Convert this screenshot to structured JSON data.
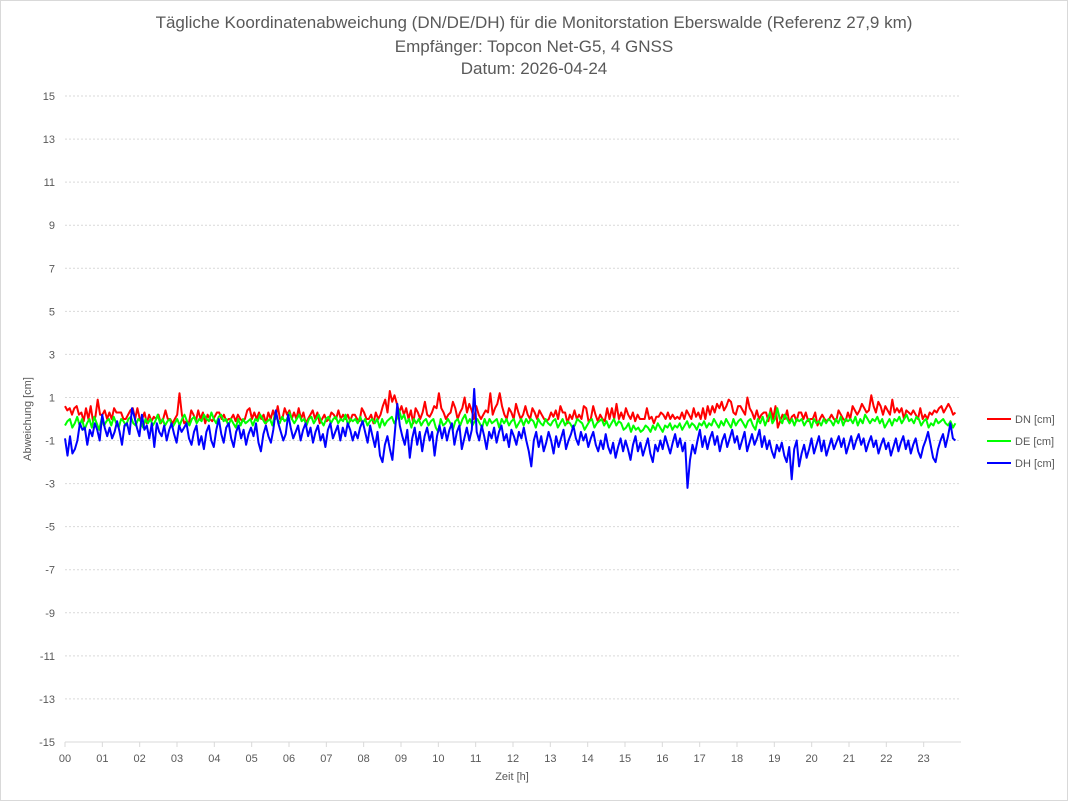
{
  "chart_data": {
    "type": "line",
    "title": "Tägliche Koordinatenabweichung (DN/DE/DH) für die Monitorstation Eberswalde (Referenz 27,9 km)",
    "subtitle": "Empfänger: Topcon Net-G5, 4 GNSS",
    "subtitle2": "Datum: 2026-04-24",
    "xlabel": "Zeit [h]",
    "ylabel": "Abweichung [cm]",
    "xlim": [
      0,
      24
    ],
    "ylim": [
      -15,
      15
    ],
    "yticks": [
      "15",
      "13",
      "11",
      "9",
      "7",
      "5",
      "3",
      "1",
      "-1",
      "-3",
      "-5",
      "-7",
      "-9",
      "-11",
      "-13",
      "-15"
    ],
    "xticks": [
      "00",
      "01",
      "02",
      "03",
      "04",
      "05",
      "06",
      "07",
      "08",
      "09",
      "10",
      "11",
      "12",
      "13",
      "14",
      "15",
      "16",
      "17",
      "18",
      "19",
      "20",
      "21",
      "22",
      "23"
    ],
    "grid": true,
    "legend_position": "right",
    "series": [
      {
        "name": "DN [cm]",
        "color": "#ff0000",
        "values": [
          0.6,
          0.4,
          0.5,
          0.2,
          0.5,
          0.6,
          0.2,
          0.3,
          -0.1,
          0.5,
          0.0,
          0.6,
          -0.1,
          0.1,
          0.9,
          0.2,
          0.2,
          0.4,
          0.0,
          0.3,
          0.0,
          0.5,
          0.3,
          0.3,
          0.3,
          0.0,
          0.0,
          0.2,
          0.4,
          0.5,
          0.0,
          0.5,
          0.0,
          0.0,
          0.3,
          -0.2,
          0.2,
          -0.1,
          0.1,
          0.0,
          0.2,
          -0.2,
          0.0,
          0.4,
          0.0,
          0.0,
          -0.2,
          0.0,
          0.2,
          1.2,
          0.2,
          -0.2,
          -0.1,
          -0.2,
          0.4,
          0.2,
          -0.1,
          0.4,
          0.0,
          0.3,
          -0.2,
          0.2,
          0.0,
          -0.1,
          0.1,
          0.3,
          0.3,
          0.0,
          0.2,
          -0.1,
          0.0,
          0.0,
          0.2,
          -0.1,
          0.2,
          0.0,
          -0.1,
          0.0,
          0.4,
          0.5,
          0.0,
          0.3,
          0.0,
          0.3,
          0.0,
          0.2,
          -0.2,
          0.3,
          0.0,
          0.4,
          0.0,
          0.6,
          0.0,
          0.0,
          0.5,
          0.2,
          0.4,
          0.0,
          0.3,
          0.0,
          0.5,
          0.0,
          0.3,
          -0.2,
          0.0,
          0.2,
          0.4,
          0.0,
          0.3,
          -0.2,
          0.0,
          0.2,
          -0.1,
          0.0,
          0.3,
          0.2,
          0.0,
          0.4,
          0.0,
          0.2,
          0.0,
          0.2,
          -0.1,
          0.2,
          0.2,
          0.0,
          -0.1,
          0.5,
          0.3,
          0.0,
          0.0,
          0.2,
          -0.2,
          0.3,
          0.0,
          0.2,
          0.6,
          0.9,
          0.3,
          1.3,
          0.8,
          1.1,
          0.7,
          0.3,
          0.6,
          0.2,
          0.5,
          0.0,
          0.4,
          -0.2,
          0.5,
          0.3,
          0.0,
          0.3,
          0.8,
          0.2,
          0.1,
          0.3,
          0.6,
          0.5,
          1.2,
          0.5,
          0.3,
          0.0,
          0.2,
          0.3,
          0.8,
          0.5,
          0.0,
          0.3,
          0.5,
          1.0,
          0.3,
          0.7,
          0.4,
          0.0,
          0.6,
          0.2,
          0.0,
          0.2,
          0.4,
          0.3,
          1.2,
          0.2,
          0.5,
          0.7,
          1.2,
          0.6,
          0.2,
          0.0,
          0.5,
          0.3,
          0.0,
          0.7,
          0.3,
          0.0,
          0.2,
          0.6,
          0.2,
          0.0,
          0.5,
          0.3,
          0.0,
          0.4,
          0.2,
          0.0,
          -0.1,
          0.0,
          0.3,
          0.1,
          0.4,
          0.0,
          0.6,
          0.3,
          0.3,
          -0.2,
          0.2,
          0.0,
          0.4,
          0.0,
          0.2,
          0.0,
          0.6,
          0.5,
          -0.1,
          0.0,
          0.6,
          0.2,
          -0.1,
          0.2,
          0.0,
          -0.1,
          0.5,
          0.0,
          0.5,
          0.0,
          0.7,
          0.0,
          0.3,
          0.0,
          0.5,
          0.2,
          0.0,
          0.3,
          -0.1,
          0.2,
          0.0,
          0.0,
          0.0,
          0.5,
          0.0,
          0.1,
          -0.2,
          0.1,
          0.1,
          0.3,
          0.2,
          0.0,
          0.3,
          0.0,
          0.2,
          0.0,
          0.1,
          0.0,
          0.3,
          0.0,
          0.4,
          0.2,
          0.0,
          0.5,
          0.1,
          0.3,
          0.0,
          0.5,
          0.0,
          0.6,
          0.2,
          0.6,
          0.3,
          0.7,
          0.5,
          0.8,
          0.4,
          0.6,
          0.9,
          0.8,
          0.3,
          0.2,
          0.6,
          0.6,
          0.4,
          0.2,
          1.0,
          0.5,
          0.3,
          0.0,
          0.4,
          0.0,
          0.2,
          0.3,
          0.3,
          -0.1,
          0.5,
          0.0,
          0.6,
          -0.4,
          -0.1,
          0.2,
          0.0,
          0.4,
          -0.2,
          0.1,
          0.2,
          -0.1,
          0.3,
          0.3,
          0.0,
          0.3,
          -0.1,
          0.0,
          0.0,
          0.3,
          -0.3,
          0.0,
          0.2,
          0.0,
          -0.1,
          0.0,
          0.2,
          0.0,
          -0.1,
          0.4,
          0.2,
          0.0,
          -0.1,
          0.3,
          0.0,
          0.6,
          0.4,
          0.2,
          0.4,
          0.7,
          0.5,
          0.3,
          0.4,
          1.1,
          0.6,
          0.3,
          0.8,
          0.6,
          0.2,
          0.6,
          0.4,
          0.2,
          0.9,
          0.3,
          0.5,
          0.3,
          0.5,
          0.0,
          0.4,
          0.3,
          0.2,
          0.4,
          0.2,
          0.0,
          0.5,
          0.0,
          0.2,
          0.0,
          0.3,
          0.2,
          0.4,
          0.3,
          0.5,
          0.6,
          0.3,
          0.5,
          0.7,
          0.5,
          0.2,
          0.3
        ]
      },
      {
        "name": "DE [cm]",
        "color": "#00ff00",
        "values": [
          -0.3,
          -0.1,
          0.0,
          -0.4,
          -0.2,
          0.1,
          -0.3,
          0.0,
          -0.5,
          -0.2,
          0.0,
          -0.4,
          0.1,
          -0.2,
          -0.5,
          0.0,
          -0.3,
          -0.1,
          0.0,
          -0.3,
          0.1,
          -0.2,
          -0.4,
          0.0,
          -0.1,
          -0.3,
          0.0,
          0.1,
          -0.2,
          -0.3,
          0.0,
          -0.1,
          -0.4,
          0.0,
          -0.2,
          0.0,
          -0.3,
          -0.1,
          0.2,
          -0.2,
          0.0,
          -0.3,
          -0.1,
          0.0,
          -0.4,
          -0.2,
          0.0,
          -0.3,
          0.0,
          0.2,
          -0.1,
          -0.3,
          0.0,
          0.1,
          -0.2,
          0.0,
          -0.1,
          0.2,
          0.0,
          -0.1,
          0.3,
          0.0,
          -0.2,
          0.1,
          0.2,
          -0.1,
          0.0,
          -0.3,
          0.0,
          -0.2,
          -0.4,
          0.0,
          -0.3,
          0.0,
          -0.2,
          -0.1,
          0.0,
          -0.3,
          0.0,
          -0.1,
          0.2,
          0.0,
          -0.2,
          -0.1,
          0.0,
          -0.3,
          0.2,
          0.0,
          -0.2,
          0.1,
          -0.1,
          0.0,
          0.3,
          0.0,
          -0.2,
          0.0,
          0.2,
          -0.1,
          0.0,
          -0.3,
          0.0,
          0.1,
          -0.2,
          0.0,
          0.2,
          -0.1,
          -0.3,
          0.0,
          0.1,
          -0.2,
          0.0,
          0.1,
          -0.2,
          0.0,
          -0.1,
          0.2,
          -0.3,
          0.0,
          -0.1,
          0.0,
          -0.2,
          0.1,
          -0.2,
          0.0,
          -0.3,
          -0.1,
          0.0,
          -0.2,
          0.0,
          -0.4,
          0.0,
          -0.3,
          -0.1,
          0.0,
          0.1,
          -0.2,
          0.0,
          0.4,
          0.0,
          0.2,
          -0.2,
          0.0,
          -0.4,
          0.0,
          -0.2,
          0.0,
          -0.3,
          -0.1,
          0.0,
          -0.3,
          -0.1,
          0.0,
          -0.4,
          -0.6,
          0.0,
          -0.3,
          -0.2,
          0.0,
          -0.2,
          -0.5,
          -0.1,
          0.0,
          -0.3,
          0.0,
          0.2,
          -0.2,
          0.0,
          -0.3,
          -0.1,
          0.0,
          -0.2,
          -0.4,
          0.0,
          -0.3,
          0.0,
          -0.2,
          -0.1,
          0.0,
          -0.4,
          0.0,
          -0.2,
          0.0,
          -0.3,
          -0.1,
          0.0,
          -0.4,
          -0.2,
          0.0,
          -0.3,
          0.0,
          -0.2,
          0.0,
          -0.1,
          -0.4,
          0.0,
          -0.2,
          -0.3,
          0.0,
          -0.2,
          -0.3,
          -0.1,
          0.0,
          -0.4,
          -0.2,
          0.0,
          -0.3,
          -0.1,
          -0.2,
          -0.4,
          -0.3,
          0.0,
          -0.1,
          -0.2,
          -0.5,
          -0.3,
          -0.1,
          0.0,
          -0.4,
          -0.2,
          -0.1,
          0.0,
          -0.3,
          -0.1,
          -0.4,
          -0.2,
          0.0,
          -0.3,
          -0.1,
          -0.2,
          -0.5,
          -0.4,
          -0.2,
          -0.6,
          -0.3,
          -0.5,
          -0.4,
          -0.6,
          -0.5,
          -0.3,
          -0.4,
          -0.6,
          -0.3,
          -0.5,
          -0.2,
          -0.4,
          -0.6,
          -0.3,
          -0.4,
          -0.2,
          -0.5,
          -0.3,
          -0.4,
          -0.2,
          -0.5,
          -0.3,
          -0.1,
          -0.4,
          -0.2,
          -0.3,
          -0.5,
          -0.2,
          -0.3,
          -0.1,
          -0.4,
          -0.2,
          -0.3,
          0.0,
          -0.2,
          -0.4,
          -0.1,
          -0.3,
          0.0,
          -0.2,
          -0.4,
          0.0,
          -0.3,
          -0.1,
          0.0,
          -0.2,
          -0.4,
          -0.1,
          0.0,
          -0.3,
          -0.5,
          0.0,
          -0.2,
          0.1,
          -0.3,
          0.0,
          0.3,
          -0.2,
          0.0,
          0.5,
          0.0,
          -0.2,
          0.2,
          0.0,
          -0.2,
          0.0,
          -0.3,
          0.0,
          -0.1,
          0.0,
          -0.3,
          -0.1,
          0.0,
          -0.4,
          0.0,
          -0.2,
          -0.1,
          -0.3,
          0.0,
          -0.2,
          0.0,
          -0.1,
          -0.3,
          0.0,
          -0.2,
          0.1,
          -0.3,
          0.0,
          -0.1,
          0.0,
          -0.2,
          0.1,
          -0.3,
          0.0,
          -0.2,
          0.2,
          0.0,
          -0.2,
          0.0,
          -0.1,
          0.1,
          -0.2,
          0.0,
          -0.4,
          -0.2,
          0.0,
          -0.3,
          0.0,
          -0.1,
          0.1,
          -0.2,
          0.0,
          0.2,
          -0.1,
          0.0,
          -0.2,
          0.1,
          0.0,
          -0.3,
          -0.1,
          0.0,
          -0.4,
          -0.2,
          -0.3,
          0.0,
          -0.2,
          -0.1,
          0.0,
          -0.2,
          -0.3,
          -0.1,
          -0.4,
          -0.2
        ]
      },
      {
        "name": "DH [cm]",
        "color": "#0000ff",
        "values": [
          -0.9,
          -1.7,
          -0.8,
          -1.6,
          -1.4,
          -1.0,
          -0.2,
          -0.5,
          -0.4,
          -1.2,
          -0.5,
          -0.8,
          -0.2,
          -0.5,
          -1.0,
          0.2,
          -0.4,
          -0.8,
          -0.4,
          -0.9,
          -0.6,
          -0.1,
          -0.6,
          -1.2,
          -0.3,
          -0.2,
          -0.7,
          0.5,
          0.1,
          -0.4,
          -0.8,
          0.2,
          -0.5,
          -0.3,
          -0.9,
          -0.2,
          -1.3,
          -0.2,
          -0.6,
          -0.8,
          -0.3,
          -1.0,
          -0.5,
          -0.2,
          -0.7,
          -1.1,
          -0.3,
          -0.6,
          -0.4,
          -0.2,
          -0.9,
          -1.2,
          -0.6,
          -0.3,
          -1.2,
          -0.8,
          -1.4,
          -0.6,
          -0.3,
          -1.0,
          -1.3,
          -0.5,
          0.0,
          -0.7,
          -1.1,
          -0.4,
          -0.2,
          -0.9,
          -1.3,
          -0.6,
          -0.3,
          -0.9,
          -0.5,
          -1.2,
          -0.7,
          -0.4,
          -0.8,
          -0.2,
          -1.1,
          -1.5,
          -0.7,
          -0.3,
          -0.8,
          -1.1,
          -0.5,
          0.4,
          -0.2,
          -0.6,
          -1.0,
          -0.7,
          0.2,
          -0.4,
          -0.9,
          -0.6,
          -0.3,
          -1.0,
          -0.5,
          -0.2,
          -0.8,
          -0.4,
          -1.1,
          -0.6,
          -0.3,
          -1.0,
          -0.7,
          -1.3,
          -0.5,
          -0.2,
          -0.9,
          -0.6,
          -0.3,
          -1.0,
          -0.4,
          -0.8,
          -0.2,
          -0.5,
          -1.0,
          -0.6,
          -0.9,
          -0.4,
          -0.1,
          -0.6,
          -1.1,
          -0.3,
          -0.8,
          -1.3,
          -0.6,
          -1.7,
          -2.0,
          -1.2,
          -0.8,
          -1.4,
          -1.9,
          -0.6,
          0.7,
          -0.3,
          -0.8,
          -1.2,
          -0.5,
          -1.8,
          -0.9,
          -0.4,
          -1.2,
          -0.6,
          -1.5,
          -0.8,
          -0.4,
          -1.0,
          -0.6,
          -1.7,
          -0.8,
          -0.3,
          -0.9,
          -0.4,
          -1.0,
          -0.5,
          -0.2,
          -1.2,
          -0.6,
          -0.3,
          -1.4,
          -0.9,
          -0.4,
          -1.0,
          -0.5,
          1.4,
          -0.6,
          -1.0,
          -0.3,
          -0.8,
          -1.4,
          -0.6,
          -0.9,
          -0.4,
          -1.1,
          -0.6,
          -0.3,
          -1.0,
          -0.7,
          -1.3,
          -0.5,
          -0.8,
          -1.2,
          -0.6,
          -0.9,
          -0.4,
          -1.0,
          -1.5,
          -2.2,
          -1.0,
          -0.6,
          -1.3,
          -0.8,
          -1.5,
          -1.1,
          -0.6,
          -1.0,
          -1.6,
          -0.8,
          -1.3,
          -0.9,
          -0.5,
          -1.4,
          -1.0,
          -0.7,
          -0.3,
          -0.9,
          -1.2,
          -0.6,
          -1.0,
          -0.7,
          -1.3,
          -0.9,
          -0.6,
          -1.2,
          -1.5,
          -1.0,
          -1.4,
          -0.7,
          -1.3,
          -1.6,
          -1.1,
          -1.8,
          -1.3,
          -0.9,
          -1.5,
          -1.0,
          -1.4,
          -1.9,
          -1.2,
          -0.8,
          -1.5,
          -1.1,
          -1.7,
          -1.3,
          -0.9,
          -1.6,
          -2.0,
          -1.2,
          -1.5,
          -1.0,
          -1.4,
          -0.8,
          -1.2,
          -1.6,
          -1.1,
          -0.7,
          -1.3,
          -0.9,
          -1.5,
          -1.1,
          -3.2,
          -1.9,
          -1.2,
          -1.6,
          -1.0,
          -0.5,
          -1.3,
          -0.8,
          -1.4,
          -0.9,
          -0.6,
          -1.2,
          -0.8,
          -1.5,
          -1.0,
          -0.7,
          -1.3,
          -0.9,
          -0.5,
          -1.1,
          -0.8,
          -1.4,
          -1.0,
          -0.6,
          -1.5,
          -1.1,
          -0.7,
          -1.2,
          -0.9,
          -0.5,
          -1.3,
          -0.8,
          -1.4,
          -1.0,
          -1.5,
          -1.8,
          -1.2,
          -1.5,
          -1.1,
          -1.7,
          -2.0,
          -1.3,
          -2.8,
          -1.4,
          -1.0,
          -2.2,
          -1.6,
          -1.2,
          -1.8,
          -1.4,
          -0.9,
          -1.6,
          -1.2,
          -0.8,
          -1.5,
          -1.0,
          -1.7,
          -1.3,
          -0.9,
          -1.4,
          -1.1,
          -0.8,
          -1.3,
          -0.9,
          -1.6,
          -1.2,
          -0.8,
          -1.4,
          -1.0,
          -0.7,
          -1.2,
          -0.9,
          -1.5,
          -1.1,
          -0.8,
          -1.3,
          -1.0,
          -1.6,
          -1.2,
          -0.9,
          -1.4,
          -1.1,
          -1.7,
          -1.3,
          -0.9,
          -1.5,
          -1.1,
          -0.8,
          -1.4,
          -1.0,
          -1.6,
          -1.2,
          -0.9,
          -1.5,
          -1.8,
          -1.3,
          -1.0,
          -0.6,
          -1.2,
          -1.8,
          -2.0,
          -1.4,
          -1.0,
          -0.7,
          -1.3,
          -0.8,
          -0.2,
          -0.9,
          -1.0
        ]
      }
    ]
  }
}
